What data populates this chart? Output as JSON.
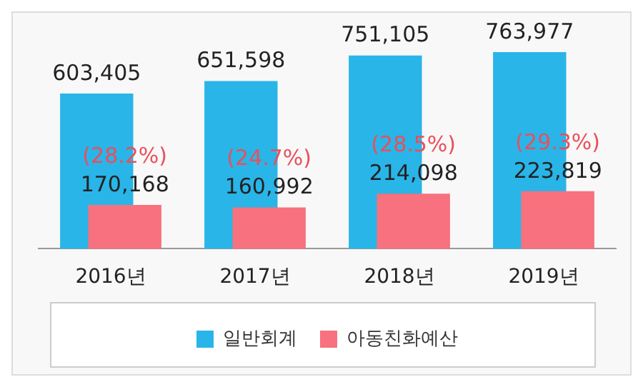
{
  "chart_data": {
    "type": "bar",
    "categories": [
      "2016년",
      "2017년",
      "2018년",
      "2019년"
    ],
    "series": [
      {
        "name": "일반회계",
        "color": "#29b5e8",
        "values": [
          603405,
          651598,
          751105,
          763977
        ],
        "value_labels": [
          "603,405",
          "651,598",
          "751,105",
          "763,977"
        ]
      },
      {
        "name": "아동친화예산",
        "color": "#f7717e",
        "values": [
          170168,
          160992,
          214098,
          223819
        ],
        "value_labels": [
          "170,168",
          "160,992",
          "214,098",
          "223,819"
        ]
      }
    ],
    "annotations": [
      {
        "text": "(28.2%)",
        "x": "2016년",
        "y": 170168
      },
      {
        "text": "(24.7%)",
        "x": "2017년",
        "y": 160992
      },
      {
        "text": "(28.5%)",
        "x": "2018년",
        "y": 214098
      },
      {
        "text": "(29.3%)",
        "x": "2019년",
        "y": 223819
      }
    ],
    "legend": "bottom",
    "grid": false
  }
}
